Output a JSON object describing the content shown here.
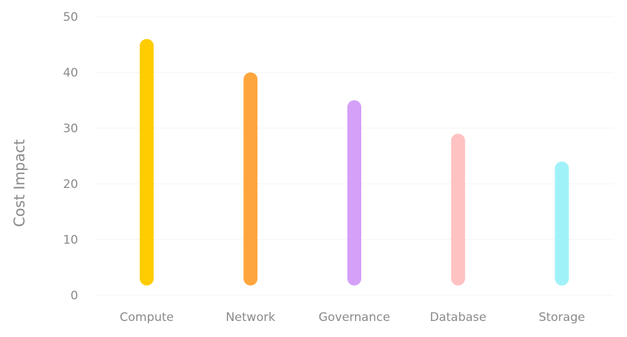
{
  "chart_data": {
    "type": "bar",
    "title": "",
    "xlabel": "",
    "ylabel": "Cost Impact",
    "ylim": [
      0,
      50
    ],
    "yticks": [
      0,
      10,
      20,
      30,
      40,
      50
    ],
    "grid": true,
    "categories": [
      "Compute",
      "Network",
      "Governance",
      "Database",
      "Storage"
    ],
    "series": [
      {
        "values": [
          46,
          40,
          35,
          29,
          24
        ],
        "colors": [
          "#FFCC00",
          "#FFA53E",
          "#D4A0F8",
          "#FFC2C2",
          "#A0F2F8"
        ]
      }
    ]
  }
}
